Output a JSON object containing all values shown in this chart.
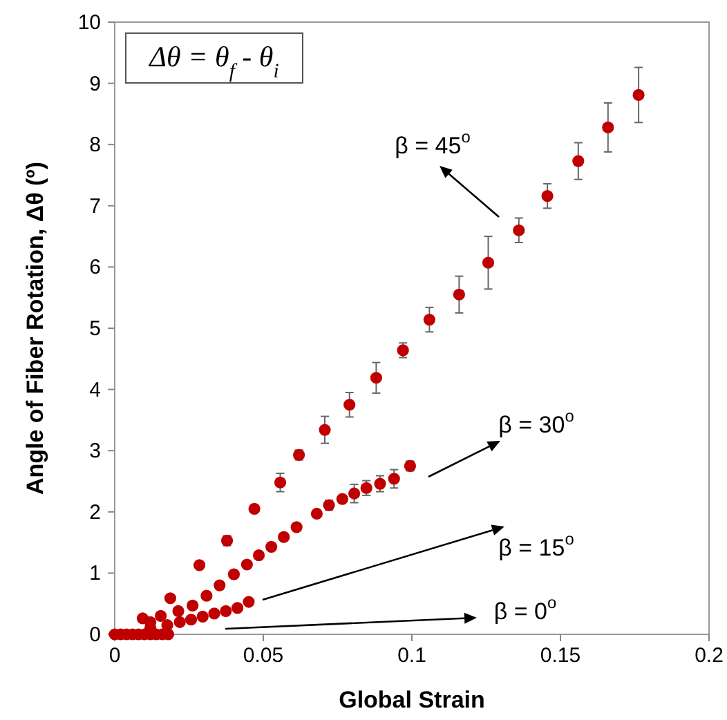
{
  "chart_data": {
    "type": "scatter",
    "xlabel": "Global Strain",
    "ylabel": "Angle of Fiber Rotation, Δθ (º)",
    "xlim": [
      0,
      0.2
    ],
    "ylim": [
      0,
      10
    ],
    "xticks": [
      0,
      0.05,
      0.1,
      0.15,
      0.2
    ],
    "yticks": [
      0,
      1,
      2,
      3,
      4,
      5,
      6,
      7,
      8,
      9,
      10
    ],
    "grid": false,
    "marker": "circle",
    "annotations": [
      "Δθ = θ$_{f}$ - θ$_{i}$",
      "β = 45$^{o}$",
      "β = 30$^{o}$",
      "β = 15$^{o}$",
      "β = 0$^{o}$"
    ],
    "series": [
      {
        "color": "#c00000",
        "x": [
          0.0094,
          0.0187,
          0.0285,
          0.0378,
          0.047,
          0.0557,
          0.062,
          0.0707,
          0.079,
          0.088,
          0.097,
          0.1059,
          0.1159,
          0.1257,
          0.136,
          0.1456,
          0.156,
          0.166,
          0.1763
        ],
        "values": [
          0.26,
          0.59,
          1.13,
          1.53,
          2.05,
          2.48,
          2.93,
          3.34,
          3.75,
          4.19,
          4.64,
          5.14,
          5.55,
          6.07,
          6.6,
          7.16,
          7.73,
          8.28,
          8.81
        ],
        "errors": [
          null,
          null,
          null,
          0.08,
          null,
          0.15,
          0.08,
          0.22,
          0.2,
          0.25,
          0.12,
          0.2,
          0.3,
          0.43,
          0.2,
          0.2,
          0.3,
          0.4,
          0.45
        ]
      },
      {
        "color": "#c00000",
        "x": [
          0.012,
          0.0155,
          0.0214,
          0.0262,
          0.0309,
          0.0353,
          0.0401,
          0.0445,
          0.0485,
          0.0527,
          0.0569,
          0.0612,
          0.068,
          0.0721,
          0.0766,
          0.0806,
          0.0847,
          0.0893,
          0.094,
          0.0994
        ],
        "values": [
          0.2,
          0.3,
          0.38,
          0.47,
          0.63,
          0.8,
          0.98,
          1.14,
          1.29,
          1.43,
          1.59,
          1.75,
          1.97,
          2.11,
          2.21,
          2.3,
          2.39,
          2.46,
          2.54,
          2.75
        ],
        "errors": [
          null,
          null,
          null,
          null,
          null,
          null,
          null,
          null,
          null,
          null,
          null,
          null,
          null,
          0.08,
          null,
          0.15,
          0.12,
          0.13,
          0.15,
          0.08
        ]
      },
      {
        "color": "#c00000",
        "x": [
          0.012,
          0.0177,
          0.0219,
          0.0257,
          0.0296,
          0.0335,
          0.0374,
          0.0413,
          0.0451
        ],
        "values": [
          0.1,
          0.15,
          0.2,
          0.24,
          0.29,
          0.34,
          0.38,
          0.43,
          0.53
        ]
      },
      {
        "color": "#c00000",
        "x": [
          0,
          0.002,
          0.004,
          0.006,
          0.008,
          0.01,
          0.012,
          0.014,
          0.016,
          0.018
        ],
        "values": [
          0,
          0,
          0,
          0,
          0,
          0,
          0,
          0,
          0,
          0
        ]
      }
    ]
  }
}
